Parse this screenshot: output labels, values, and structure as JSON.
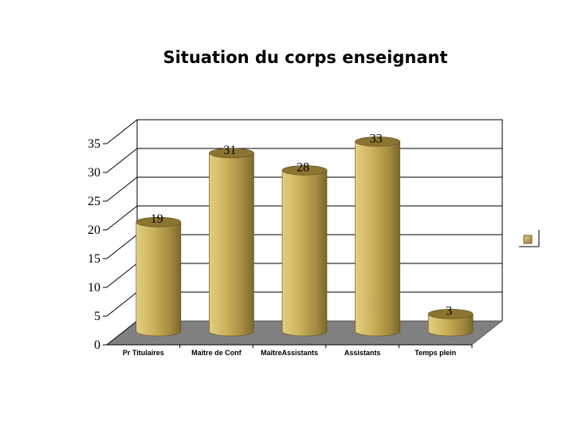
{
  "chart_data": {
    "type": "bar",
    "style": "3d-cylinder",
    "title": "Situation du corps enseignant",
    "xlabel": "",
    "ylabel": "",
    "categories": [
      "Pr Titulaires",
      "Maître de Conf",
      "MaîtreAssistants",
      "Assistants",
      "Temps plein"
    ],
    "series": [
      {
        "values": [
          19,
          31,
          28,
          33,
          3
        ]
      }
    ],
    "ylim": [
      0,
      35
    ],
    "yticks": [
      0,
      5,
      10,
      15,
      20,
      25,
      30,
      35
    ],
    "grid": true,
    "legend": "right",
    "colors": {
      "bar": "#c9b15a",
      "bar_dark": "#8c7530",
      "bar_light": "#e6d386",
      "floor": "#808080",
      "gridline": "#000000"
    }
  }
}
